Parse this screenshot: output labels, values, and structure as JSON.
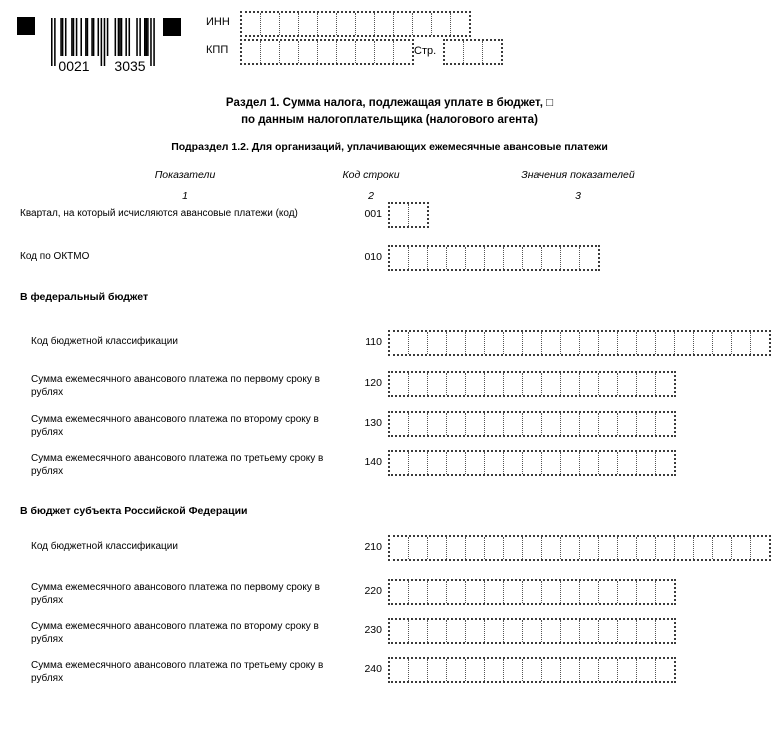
{
  "header": {
    "barcode_digits": "0021 3035",
    "inn_label": "ИНН",
    "kpp_label": "КПП",
    "page_label": "Стр.",
    "inn_cells": 12,
    "kpp_cells": 9,
    "page_cells": 3
  },
  "title": {
    "line1": "Раздел 1. Сумма налога, подлежащая уплате в бюджет, □",
    "line2": "по данным налогоплательщика (налогового агента)",
    "subtitle": "Подраздел 1.2. Для организаций, уплачивающих ежемесячные авансовые платежи"
  },
  "columns": [
    {
      "label": "Показатели",
      "num": "1"
    },
    {
      "label": "Код строки",
      "num": "2"
    },
    {
      "label": "Значения показателей",
      "num": "3"
    }
  ],
  "sections": {
    "federal": "В федеральный бюджет",
    "regional": "В бюджет субъекта Российской Федерации"
  },
  "rows": [
    {
      "code": "001",
      "label": "Квартал, на который исчисляются авансовые платежи (код)",
      "cells": 2,
      "value": ""
    },
    {
      "code": "010",
      "label": "Код по ОКТМО",
      "cells": 11,
      "value": ""
    },
    {
      "code": "110",
      "label": "Код бюджетной классификации",
      "cells": 20,
      "value": ""
    },
    {
      "code": "120",
      "label": "Сумма ежемесячного авансового платежа по первому сроку в\nрублях",
      "cells": 15,
      "value": ""
    },
    {
      "code": "130",
      "label": "Сумма ежемесячного авансового платежа по второму сроку в\nрублях",
      "cells": 15,
      "value": ""
    },
    {
      "code": "140",
      "label": "Сумма ежемесячного авансового платежа по третьему сроку в\nрублях",
      "cells": 15,
      "value": ""
    },
    {
      "code": "210",
      "label": "Код бюджетной классификации",
      "cells": 20,
      "value": ""
    },
    {
      "code": "220",
      "label": "Сумма ежемесячного авансового платежа по первому сроку в\nрублях",
      "cells": 15,
      "value": ""
    },
    {
      "code": "230",
      "label": "Сумма ежемесячного авансового платежа по второму сроку в\nрублях",
      "cells": 15,
      "value": ""
    },
    {
      "code": "240",
      "label": "Сумма ежемесячного авансового платежа по третьему сроку в\nрублях",
      "cells": 15,
      "value": ""
    }
  ]
}
